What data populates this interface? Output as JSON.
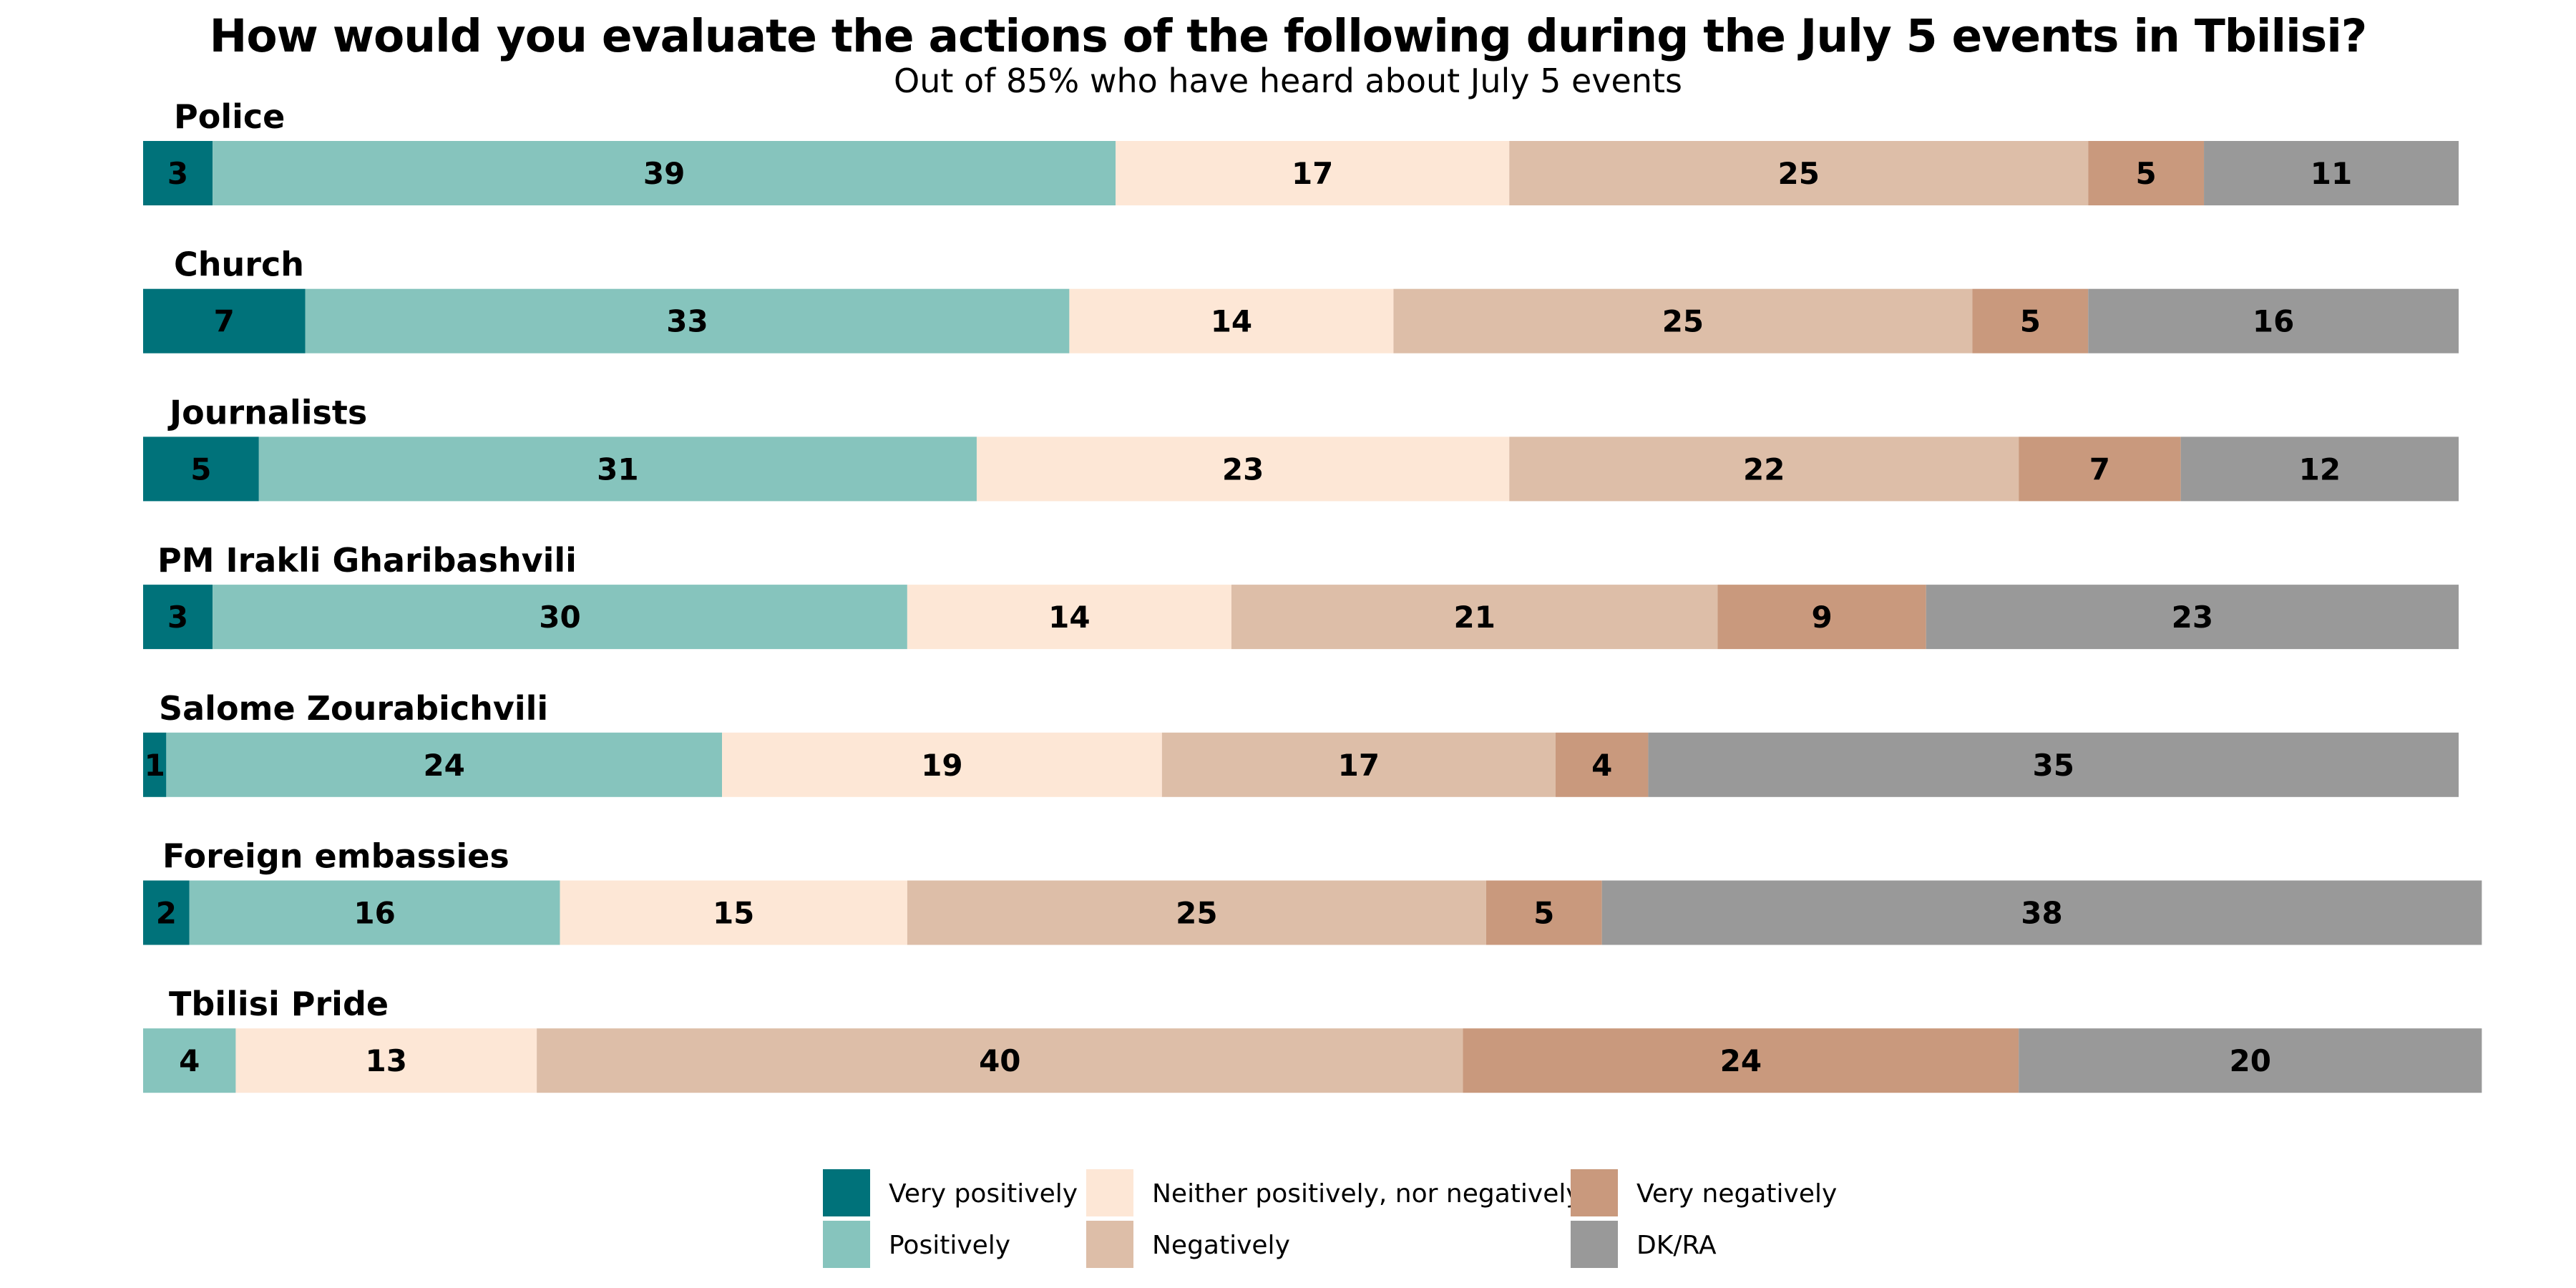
{
  "chart_data": {
    "type": "bar",
    "orientation": "horizontal",
    "stacked": true,
    "title": "How would you evaluate the actions of the following during the July 5 events in Tbilisi?",
    "subtitle": "Out of 85% who have heard about July 5 events",
    "categories": [
      "Police",
      "Church",
      "Journalists",
      "PM Irakli Gharibashvili",
      "Salome Zourabichvili",
      "Foreign embassies",
      "Tbilisi Pride"
    ],
    "series": [
      {
        "name": "Very positively",
        "color": "#00727a",
        "values": [
          3,
          7,
          5,
          3,
          1,
          2,
          0
        ]
      },
      {
        "name": "Positively",
        "color": "#86c4bd",
        "values": [
          39,
          33,
          31,
          30,
          24,
          16,
          4
        ]
      },
      {
        "name": "Neither positively, nor negatively",
        "color": "#fde7d6",
        "values": [
          17,
          14,
          23,
          14,
          19,
          15,
          13
        ]
      },
      {
        "name": "Negatively",
        "color": "#ddbea8",
        "values": [
          25,
          25,
          22,
          21,
          17,
          25,
          40
        ]
      },
      {
        "name": "Very negatively",
        "color": "#c9997d",
        "values": [
          5,
          5,
          7,
          9,
          4,
          5,
          24
        ]
      },
      {
        "name": "DK/RA",
        "color": "#999999",
        "values": [
          11,
          16,
          12,
          23,
          35,
          38,
          20
        ]
      }
    ],
    "xlim": [
      0,
      100
    ],
    "grid": false,
    "legend_position": "bottom"
  }
}
